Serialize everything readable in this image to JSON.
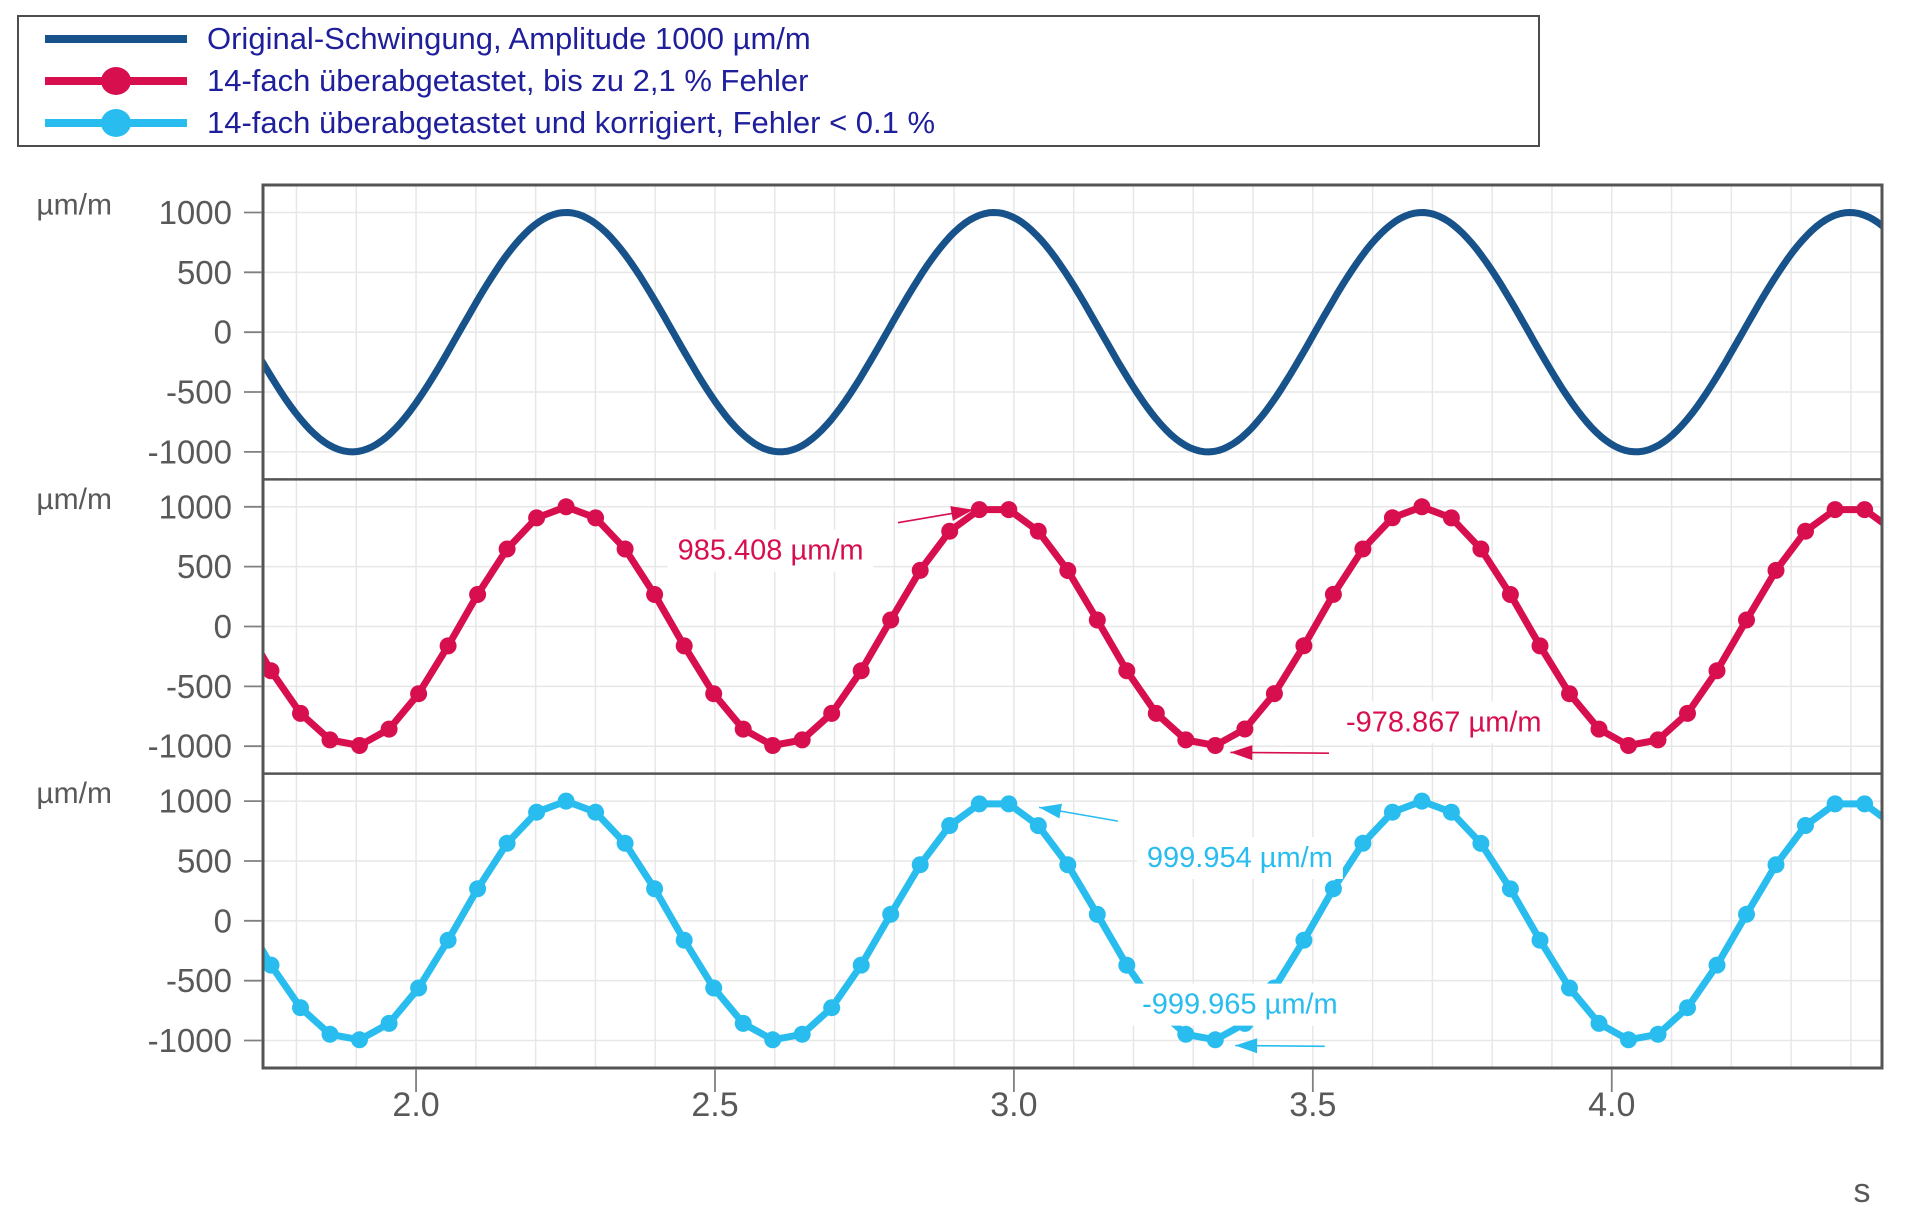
{
  "legend": {
    "entries": [
      {
        "label": "Original-Schwingung, Amplitude 1000 µm/m",
        "color": "#17528a",
        "marker": false
      },
      {
        "label": "14-fach überabgetastet, bis zu 2,1 % Fehler",
        "color": "#d80f4f",
        "marker": true
      },
      {
        "label": "14-fach überabgetastet und korrigiert, Fehler < 0.1 %",
        "color": "#29bdef",
        "marker": true
      }
    ],
    "text_color": "#1f1f9b"
  },
  "axes": {
    "y_unit_label": "µm/m",
    "x_unit_label": "s",
    "y_tick_labels": [
      "1000",
      "500",
      "0",
      "-500",
      "-1000"
    ],
    "x_tick_labels": [
      "2.0",
      "2.5",
      "3.0",
      "3.5",
      "4.0"
    ],
    "tick_text_color": "#595959",
    "grid_color": "#e7e7e7",
    "frame_color": "#545454"
  },
  "chart_data": {
    "type": "line",
    "title": "",
    "xlabel": "s",
    "ylabel": "µm/m",
    "x_axis": {
      "range": [
        1.744,
        4.452
      ],
      "major_ticks": [
        2.0,
        2.5,
        3.0,
        3.5,
        4.0
      ],
      "minor_grid_step": 0.1
    },
    "y_axis": {
      "range": [
        -1229,
        1229
      ],
      "ticks": [
        1000,
        500,
        0,
        -500,
        -1000
      ]
    },
    "signal": {
      "amplitude": 1000,
      "period_s": 0.7157,
      "peak_time_s": 2.251,
      "sample_interval_s": 0.04936,
      "samples_per_period": 14
    },
    "subplots": [
      {
        "name": "original",
        "series": "Original-Schwingung, Amplitude 1000 µm/m",
        "color": "#17528a",
        "markers": false,
        "annotations": []
      },
      {
        "name": "oversampled",
        "series": "14-fach überabgetastet, bis zu 2,1 % Fehler",
        "color": "#d80f4f",
        "markers": true,
        "annotations": [
          {
            "text": "985.408 µm/m",
            "text_at": [
              2.593,
              633
            ],
            "arrow_from": [
              2.806,
              867
            ],
            "arrow_to": [
              2.932,
              975
            ]
          },
          {
            "text": "-978.867 µm/m",
            "text_at": [
              3.719,
              -800
            ],
            "arrow_from": [
              3.527,
              -1058
            ],
            "arrow_to": [
              3.362,
              -1052
            ]
          }
        ]
      },
      {
        "name": "corrected",
        "series": "14-fach überabgetastet und korrigiert, Fehler < 0.1 %",
        "color": "#29bdef",
        "markers": true,
        "annotations": [
          {
            "text": "999.954 µm/m",
            "text_at": [
              3.378,
              525
            ],
            "arrow_from": [
              3.174,
              833
            ],
            "arrow_to": [
              3.042,
              948
            ]
          },
          {
            "text": "-999.965 µm/m",
            "text_at": [
              3.378,
              -700
            ],
            "arrow_from": [
              3.52,
              -1048
            ],
            "arrow_to": [
              3.37,
              -1042
            ]
          }
        ]
      }
    ]
  }
}
